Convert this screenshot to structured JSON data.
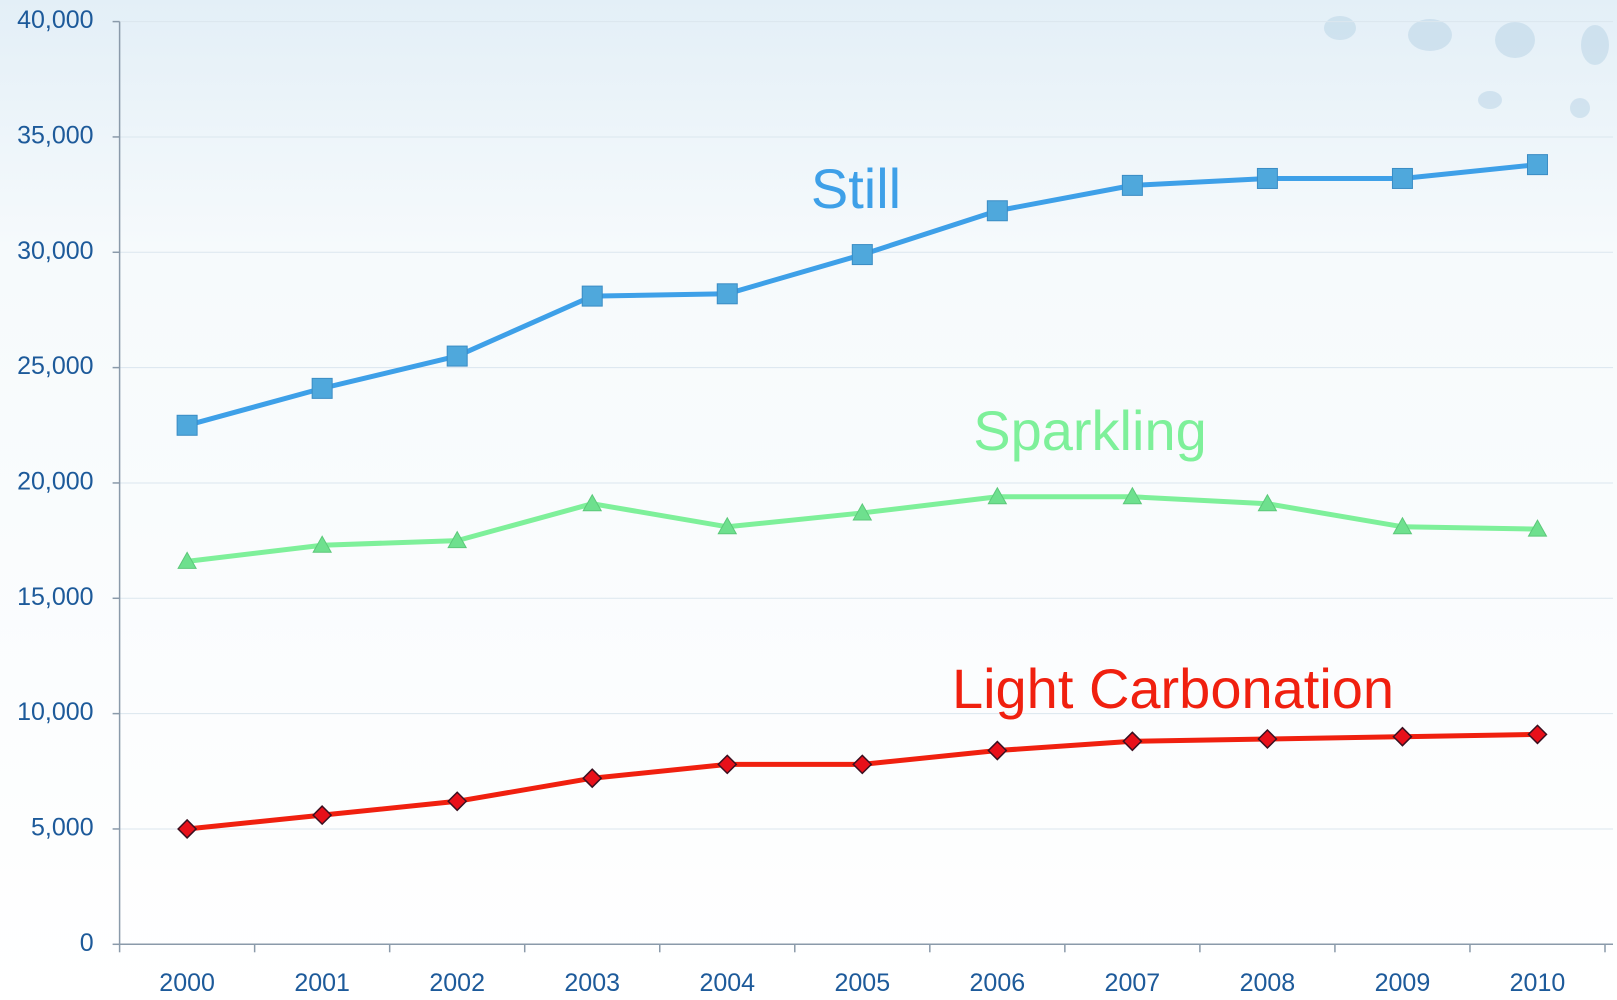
{
  "chart_data": {
    "type": "line",
    "categories": [
      "2000",
      "2001",
      "2002",
      "2003",
      "2004",
      "2005",
      "2006",
      "2007",
      "2008",
      "2009",
      "2010"
    ],
    "series": [
      {
        "name": "Still",
        "color": "#3ea0e8",
        "marker": "square",
        "values": [
          22500,
          24100,
          25500,
          28100,
          28200,
          29900,
          31800,
          32900,
          33200,
          33200,
          33800
        ]
      },
      {
        "name": "Sparkling",
        "color": "#7ef09a",
        "marker": "triangle",
        "values": [
          16600,
          17300,
          17500,
          19100,
          18100,
          18700,
          19400,
          19400,
          19100,
          18100,
          18000
        ]
      },
      {
        "name": "Light Carbonation",
        "color": "#f0200f",
        "marker": "diamond",
        "values": [
          5000,
          5600,
          6200,
          7200,
          7800,
          7800,
          8400,
          8800,
          8900,
          9000,
          9100
        ]
      }
    ],
    "ylim": [
      0,
      40000
    ],
    "yticks": [
      0,
      {
        "value": 5000,
        "label": "5,000"
      },
      {
        "value": 10000,
        "label": "10,000"
      },
      {
        "value": 15000,
        "label": "15,000"
      },
      {
        "value": 20000,
        "label": "20,000"
      },
      {
        "value": 25000,
        "label": "25,000"
      },
      {
        "value": 30000,
        "label": "30,000"
      },
      {
        "value": 35000,
        "label": "35,000"
      },
      {
        "value": 40000,
        "label": "40,000"
      }
    ],
    "grid": true
  }
}
